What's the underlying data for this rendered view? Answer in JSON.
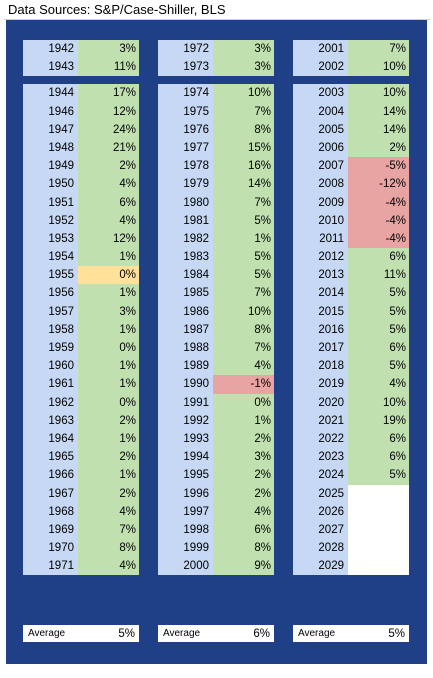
{
  "source_label": "Data Sources: S&P/Case-Shiller, BLS",
  "columns": [
    {
      "rows": [
        {
          "year": "1942",
          "value": "3%"
        },
        {
          "year": "1943",
          "value": "11%"
        },
        {
          "year": "1944",
          "value": "17%",
          "gap": true
        },
        {
          "year": "1946",
          "value": "12%"
        },
        {
          "year": "1947",
          "value": "24%"
        },
        {
          "year": "1948",
          "value": "21%"
        },
        {
          "year": "1949",
          "value": "2%"
        },
        {
          "year": "1950",
          "value": "4%"
        },
        {
          "year": "1951",
          "value": "6%"
        },
        {
          "year": "1952",
          "value": "4%"
        },
        {
          "year": "1953",
          "value": "12%"
        },
        {
          "year": "1954",
          "value": "1%"
        },
        {
          "year": "1955",
          "value": "0%",
          "highlight": "zero"
        },
        {
          "year": "1956",
          "value": "1%"
        },
        {
          "year": "1957",
          "value": "3%"
        },
        {
          "year": "1958",
          "value": "1%"
        },
        {
          "year": "1959",
          "value": "0%"
        },
        {
          "year": "1960",
          "value": "1%"
        },
        {
          "year": "1961",
          "value": "1%"
        },
        {
          "year": "1962",
          "value": "0%"
        },
        {
          "year": "1963",
          "value": "2%"
        },
        {
          "year": "1964",
          "value": "1%"
        },
        {
          "year": "1965",
          "value": "2%"
        },
        {
          "year": "1966",
          "value": "1%"
        },
        {
          "year": "1967",
          "value": "2%"
        },
        {
          "year": "1968",
          "value": "4%"
        },
        {
          "year": "1969",
          "value": "7%"
        },
        {
          "year": "1970",
          "value": "8%"
        },
        {
          "year": "1971",
          "value": "4%"
        }
      ],
      "average_label": "Average",
      "average_value": "5%"
    },
    {
      "rows": [
        {
          "year": "1972",
          "value": "3%"
        },
        {
          "year": "1973",
          "value": "3%"
        },
        {
          "year": "1974",
          "value": "10%",
          "gap": true
        },
        {
          "year": "1975",
          "value": "7%"
        },
        {
          "year": "1976",
          "value": "8%"
        },
        {
          "year": "1977",
          "value": "15%"
        },
        {
          "year": "1978",
          "value": "16%"
        },
        {
          "year": "1979",
          "value": "14%"
        },
        {
          "year": "1980",
          "value": "7%"
        },
        {
          "year": "1981",
          "value": "5%"
        },
        {
          "year": "1982",
          "value": "1%"
        },
        {
          "year": "1983",
          "value": "5%"
        },
        {
          "year": "1984",
          "value": "5%"
        },
        {
          "year": "1985",
          "value": "7%"
        },
        {
          "year": "1986",
          "value": "10%"
        },
        {
          "year": "1987",
          "value": "8%"
        },
        {
          "year": "1988",
          "value": "7%"
        },
        {
          "year": "1989",
          "value": "4%"
        },
        {
          "year": "1990",
          "value": "-1%",
          "highlight": "neg"
        },
        {
          "year": "1991",
          "value": "0%"
        },
        {
          "year": "1992",
          "value": "1%"
        },
        {
          "year": "1993",
          "value": "2%"
        },
        {
          "year": "1994",
          "value": "3%"
        },
        {
          "year": "1995",
          "value": "2%"
        },
        {
          "year": "1996",
          "value": "2%"
        },
        {
          "year": "1997",
          "value": "4%"
        },
        {
          "year": "1998",
          "value": "6%"
        },
        {
          "year": "1999",
          "value": "8%"
        },
        {
          "year": "2000",
          "value": "9%"
        }
      ],
      "average_label": "Average",
      "average_value": "6%"
    },
    {
      "rows": [
        {
          "year": "2001",
          "value": "7%"
        },
        {
          "year": "2002",
          "value": "10%"
        },
        {
          "year": "2003",
          "value": "10%",
          "gap": true
        },
        {
          "year": "2004",
          "value": "14%"
        },
        {
          "year": "2005",
          "value": "14%"
        },
        {
          "year": "2006",
          "value": "2%"
        },
        {
          "year": "2007",
          "value": "-5%",
          "highlight": "neg"
        },
        {
          "year": "2008",
          "value": "-12%",
          "highlight": "neg"
        },
        {
          "year": "2009",
          "value": "-4%",
          "highlight": "neg"
        },
        {
          "year": "2010",
          "value": "-4%",
          "highlight": "neg"
        },
        {
          "year": "2011",
          "value": "-4%",
          "highlight": "neg"
        },
        {
          "year": "2012",
          "value": "6%"
        },
        {
          "year": "2013",
          "value": "11%"
        },
        {
          "year": "2014",
          "value": "5%"
        },
        {
          "year": "2015",
          "value": "5%"
        },
        {
          "year": "2016",
          "value": "5%"
        },
        {
          "year": "2017",
          "value": "6%"
        },
        {
          "year": "2018",
          "value": "5%"
        },
        {
          "year": "2019",
          "value": "4%"
        },
        {
          "year": "2020",
          "value": "10%"
        },
        {
          "year": "2021",
          "value": "19%"
        },
        {
          "year": "2022",
          "value": "6%"
        },
        {
          "year": "2023",
          "value": "6%"
        },
        {
          "year": "2024",
          "value": "5%"
        },
        {
          "year": "2025",
          "value": "",
          "highlight": "empty"
        },
        {
          "year": "2026",
          "value": "",
          "highlight": "empty"
        },
        {
          "year": "2027",
          "value": "",
          "highlight": "empty"
        },
        {
          "year": "2028",
          "value": "",
          "highlight": "empty"
        },
        {
          "year": "2029",
          "value": "",
          "highlight": "empty"
        }
      ],
      "average_label": "Average",
      "average_value": "5%"
    }
  ],
  "colors": {
    "panel": "#1f3f87",
    "year_cell": "#c6d8f4",
    "value_cell": "#c0e0b0",
    "negative_cell": "#e8a3a3",
    "zero_cell": "#ffe19a"
  }
}
